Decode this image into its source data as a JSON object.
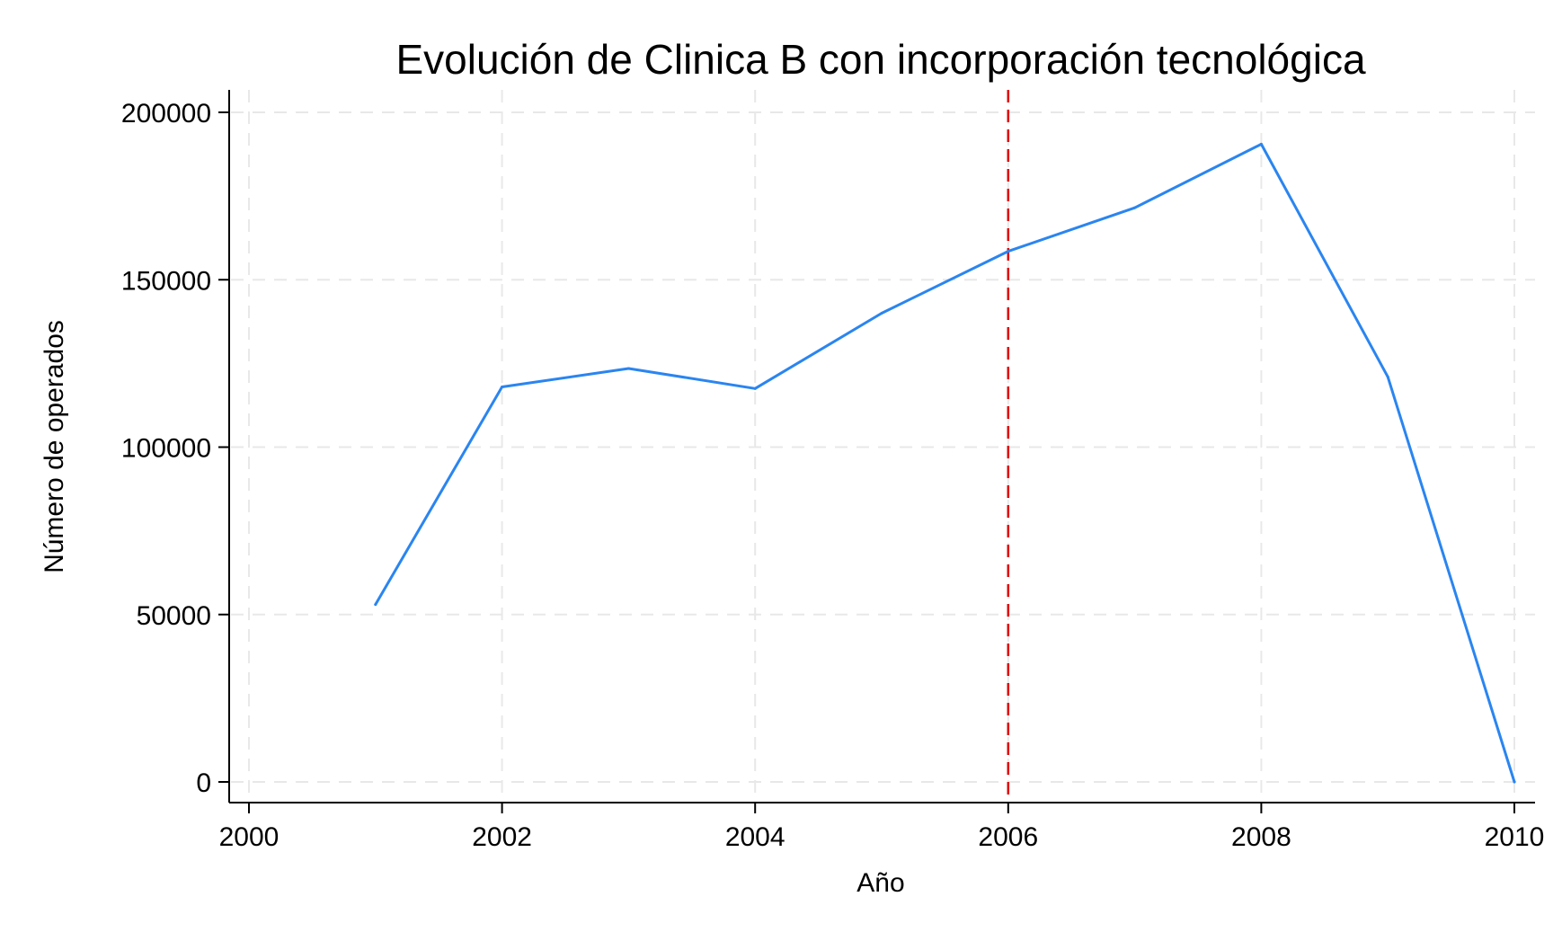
{
  "chart_data": {
    "type": "line",
    "title": "Evolución de Clinica B con incorporación tecnológica",
    "xlabel": "Año",
    "ylabel": "Número de operados",
    "xlim": [
      2000,
      2010
    ],
    "ylim": [
      0,
      200000
    ],
    "x_ticks": [
      2000,
      2002,
      2004,
      2006,
      2008,
      2010
    ],
    "y_ticks": [
      0,
      50000,
      100000,
      150000,
      200000
    ],
    "grid": true,
    "series": [
      {
        "x": [
          2001,
          2002,
          2003,
          2004,
          2005,
          2006,
          2007,
          2008,
          2009,
          2010
        ],
        "values": [
          53000,
          118000,
          123500,
          117500,
          140000,
          158500,
          171500,
          190500,
          121000,
          0
        ],
        "color": "#2a85f0"
      }
    ],
    "reference_line": {
      "x": 2006,
      "color": "#e00000",
      "style": "dashed"
    }
  }
}
